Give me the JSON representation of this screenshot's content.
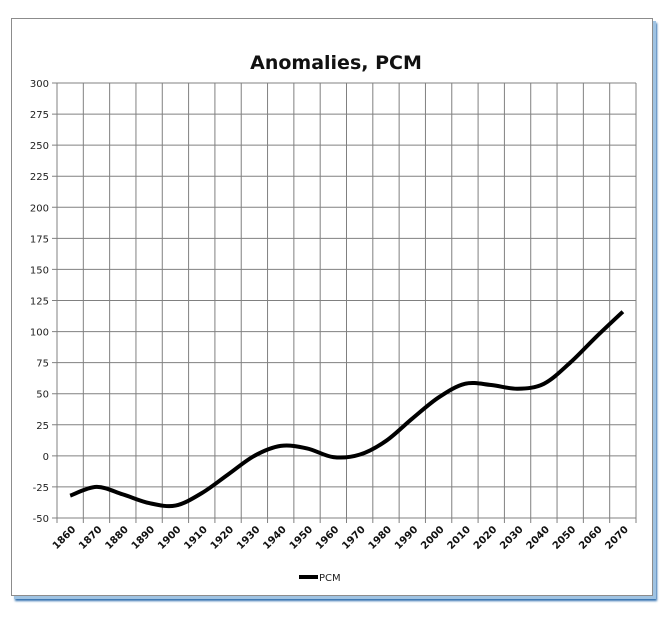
{
  "chart_data": {
    "type": "line",
    "title": "Anomalies, PCM",
    "xlabel": "",
    "ylabel": "",
    "categories": [
      "1860",
      "1870",
      "1880",
      "1890",
      "1900",
      "1910",
      "1920",
      "1930",
      "1940",
      "1950",
      "1960",
      "1970",
      "1980",
      "1990",
      "2000",
      "2010",
      "2020",
      "2030",
      "2040",
      "2050",
      "2060",
      "2070"
    ],
    "series": [
      {
        "name": "PCM",
        "color": "#000000",
        "values": [
          -32,
          -25,
          -31,
          -38,
          -40,
          -30,
          -15,
          0,
          8,
          6,
          -1,
          1,
          12,
          30,
          47,
          58,
          57,
          54,
          58,
          75,
          96,
          116
        ]
      }
    ],
    "ylim": [
      -50,
      300
    ],
    "yticks": [
      300,
      275,
      250,
      225,
      200,
      175,
      150,
      125,
      100,
      75,
      50,
      25,
      0,
      -25,
      -50
    ],
    "grid": true,
    "legend_position": "bottom",
    "smoothed": true
  },
  "colors": {
    "grid": "#808080",
    "line": "#000000",
    "frame_shadow": "#2f6fae"
  }
}
